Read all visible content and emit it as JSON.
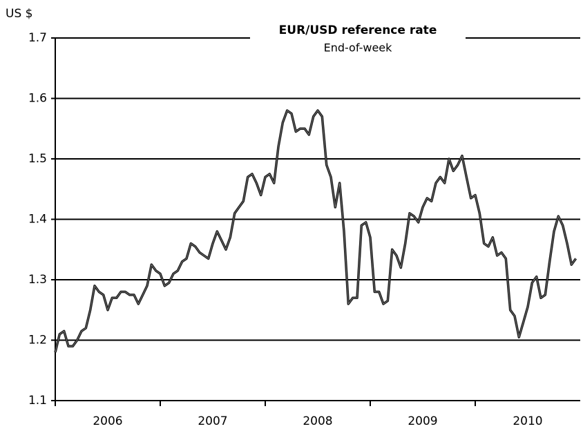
{
  "chart_data": {
    "type": "line",
    "title": "EUR/USD reference rate",
    "subtitle": "End-of-week",
    "y_label": "US $",
    "categories": [
      "2006",
      "2007",
      "2008",
      "2009",
      "2010"
    ],
    "values": [
      [
        1.18,
        1.21,
        1.215,
        1.19,
        1.19,
        1.2,
        1.215,
        1.22,
        1.25,
        1.29,
        1.28,
        1.275,
        1.25,
        1.27,
        1.27,
        1.28,
        1.28,
        1.275,
        1.275,
        1.26,
        1.275,
        1.29,
        1.325,
        1.315
      ],
      [
        1.31,
        1.29,
        1.295,
        1.31,
        1.315,
        1.33,
        1.335,
        1.36,
        1.355,
        1.345,
        1.34,
        1.335,
        1.36,
        1.38,
        1.365,
        1.35,
        1.37,
        1.41,
        1.42,
        1.43,
        1.47,
        1.475,
        1.46,
        1.44
      ],
      [
        1.47,
        1.475,
        1.46,
        1.52,
        1.56,
        1.58,
        1.575,
        1.545,
        1.55,
        1.55,
        1.54,
        1.57,
        1.58,
        1.57,
        1.49,
        1.47,
        1.42,
        1.46,
        1.38,
        1.26,
        1.27,
        1.27,
        1.39,
        1.395
      ],
      [
        1.37,
        1.28,
        1.28,
        1.26,
        1.265,
        1.35,
        1.34,
        1.32,
        1.36,
        1.41,
        1.405,
        1.395,
        1.42,
        1.435,
        1.43,
        1.46,
        1.47,
        1.46,
        1.5,
        1.48,
        1.49,
        1.505,
        1.47,
        1.435
      ],
      [
        1.44,
        1.41,
        1.36,
        1.355,
        1.37,
        1.34,
        1.345,
        1.335,
        1.25,
        1.24,
        1.205,
        1.23,
        1.255,
        1.295,
        1.305,
        1.27,
        1.275,
        1.33,
        1.38,
        1.405,
        1.39,
        1.36,
        1.325,
        1.335
      ]
    ],
    "color": "#1a1a1a",
    "ylim": [
      1.1,
      1.7
    ],
    "yticks": [
      1.1,
      1.2,
      1.3,
      1.4,
      1.5,
      1.6,
      1.7
    ],
    "grid": true
  }
}
